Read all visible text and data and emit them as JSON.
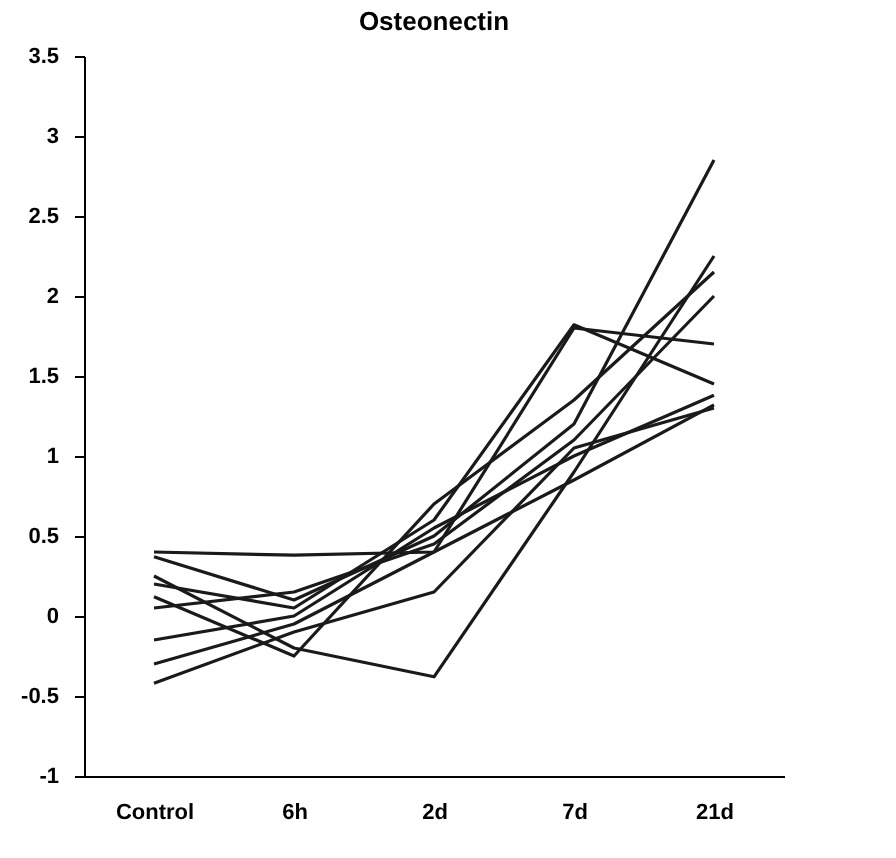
{
  "chart_data": {
    "type": "line",
    "title": "Osteonectin",
    "categories": [
      "Control",
      "6h",
      "2d",
      "7d",
      "21d"
    ],
    "series": [
      {
        "color": "#1a1a1a",
        "values": [
          0.4,
          0.38,
          0.4,
          1.8,
          1.7
        ]
      },
      {
        "color": "#1a1a1a",
        "values": [
          0.37,
          0.1,
          0.5,
          1.2,
          2.85
        ]
      },
      {
        "color": "#1a1a1a",
        "values": [
          0.25,
          -0.2,
          -0.38,
          0.9,
          2.25
        ]
      },
      {
        "color": "#1a1a1a",
        "values": [
          0.2,
          0.05,
          0.6,
          1.82,
          1.45
        ]
      },
      {
        "color": "#1a1a1a",
        "values": [
          0.12,
          -0.25,
          0.7,
          1.35,
          2.15
        ]
      },
      {
        "color": "#1a1a1a",
        "values": [
          0.05,
          0.15,
          0.45,
          1.1,
          2.0
        ]
      },
      {
        "color": "#1a1a1a",
        "values": [
          -0.15,
          0.0,
          0.55,
          1.0,
          1.38
        ]
      },
      {
        "color": "#1a1a1a",
        "values": [
          -0.3,
          -0.05,
          0.4,
          0.85,
          1.32
        ]
      },
      {
        "color": "#1a1a1a",
        "values": [
          -0.42,
          -0.1,
          0.15,
          1.05,
          1.3
        ]
      }
    ],
    "ylim": [
      -1,
      3.5
    ],
    "yticks": [
      -1,
      -0.5,
      0,
      0.5,
      1,
      1.5,
      2,
      2.5,
      3,
      3.5
    ],
    "grid": false,
    "legend": false,
    "marker": "none",
    "line_style": "solid"
  }
}
